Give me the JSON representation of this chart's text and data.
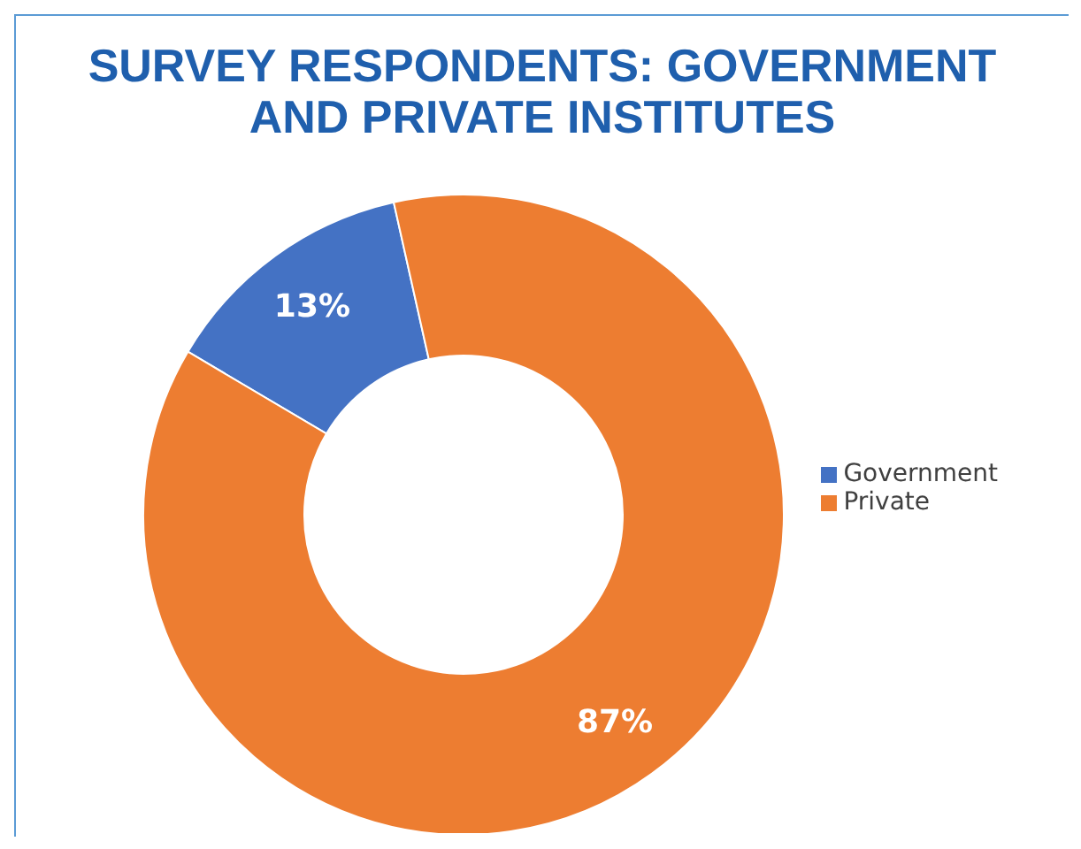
{
  "chart_data": {
    "type": "donut",
    "title": "SURVEY RESPONDENTS: GOVERNMENT AND PRIVATE INSTITUTES",
    "categories": [
      "Government",
      "Private"
    ],
    "values": [
      13,
      87
    ],
    "colors": [
      "#4472c4",
      "#ed7d31"
    ],
    "value_labels": [
      "13%",
      "87%"
    ],
    "legend": "right"
  }
}
